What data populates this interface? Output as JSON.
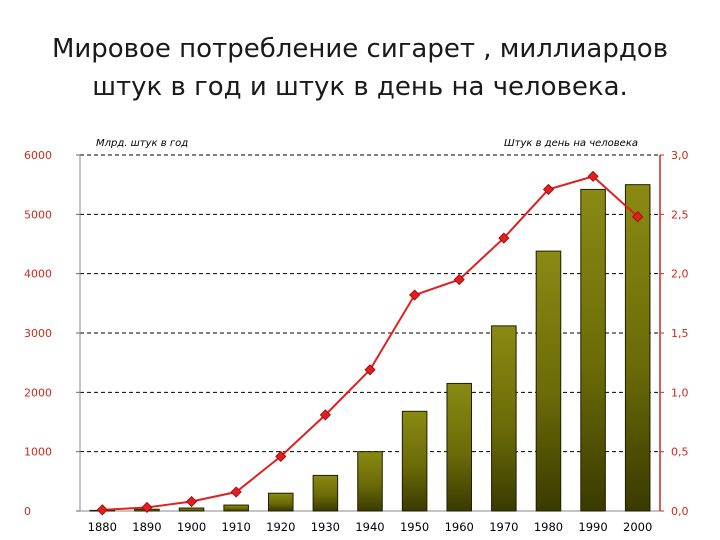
{
  "title": {
    "line1": "Мировое потребление сигарет , миллиардов",
    "line2": "штук в год и штук в день на человека."
  },
  "chart_data": {
    "type": "bar+line",
    "categories": [
      "1880",
      "1890",
      "1900",
      "1910",
      "1920",
      "1930",
      "1940",
      "1950",
      "1960",
      "1970",
      "1980",
      "1990",
      "2000"
    ],
    "left_axis_label": "Млрд. штук в год",
    "right_axis_label": "Штук в день на человека",
    "left_ylim": [
      0,
      6000
    ],
    "right_ylim": [
      0,
      3.0
    ],
    "left_ticks": [
      "0",
      "1000",
      "2000",
      "3000",
      "4000",
      "5000",
      "6000"
    ],
    "right_ticks": [
      "0,0",
      "0,5",
      "1,0",
      "1,5",
      "2,0",
      "2,5",
      "3,0"
    ],
    "grid": "horizontal dashed",
    "series": [
      {
        "axis": "left",
        "type": "bar",
        "values": [
          10,
          30,
          50,
          100,
          300,
          600,
          1000,
          1680,
          2150,
          3120,
          4380,
          5420,
          5500
        ],
        "color": "#6b6b00"
      },
      {
        "axis": "right",
        "type": "line",
        "values": [
          0.01,
          0.03,
          0.08,
          0.16,
          0.46,
          0.81,
          1.19,
          1.82,
          1.95,
          2.3,
          2.71,
          2.82,
          2.48
        ],
        "color": "#e02020"
      }
    ]
  }
}
